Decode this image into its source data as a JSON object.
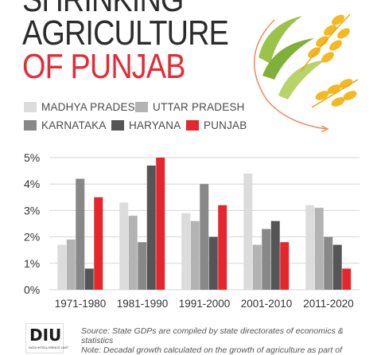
{
  "title": {
    "line1": "SHRINKING",
    "line2": "AGRICULTURE",
    "line3": "OF PUNJAB"
  },
  "legend": [
    {
      "name": "MADHYA PRADESH",
      "color": "#dcdcdc"
    },
    {
      "name": "UTTAR PRADESH",
      "color": "#b3b3b3"
    },
    {
      "name": "KARNATAKA",
      "color": "#888888"
    },
    {
      "name": "HARYANA",
      "color": "#555555"
    },
    {
      "name": "PUNJAB",
      "color": "#e5262d"
    }
  ],
  "chart_data": {
    "type": "bar",
    "categories": [
      "1971-1980",
      "1981-1990",
      "1991-2000",
      "2001-2010",
      "2011-2020"
    ],
    "series": [
      {
        "name": "MADHYA PRADESH",
        "color": "#dcdcdc",
        "values": [
          1.7,
          3.3,
          2.9,
          4.4,
          3.2
        ]
      },
      {
        "name": "UTTAR PRADESH",
        "color": "#b3b3b3",
        "values": [
          1.9,
          2.8,
          2.6,
          1.7,
          3.1
        ]
      },
      {
        "name": "KARNATAKA",
        "color": "#888888",
        "values": [
          4.2,
          1.8,
          4.0,
          2.3,
          2.0
        ]
      },
      {
        "name": "HARYANA",
        "color": "#555555",
        "values": [
          0.8,
          4.7,
          2.0,
          2.6,
          1.7
        ]
      },
      {
        "name": "PUNJAB",
        "color": "#e5262d",
        "values": [
          3.5,
          5.0,
          3.2,
          1.8,
          0.8
        ]
      }
    ],
    "yticks": [
      "0%",
      "1%",
      "2%",
      "3%",
      "4%",
      "5%"
    ],
    "ylim": [
      0,
      5
    ],
    "grid": true,
    "legend_position": "top"
  },
  "footer": {
    "logo": "DIU",
    "logo_sub": "DATA INTELLIGENCE UNIT",
    "source": "Source: State GDPs are compiled by state directorates of economics & statistics",
    "note": "Note: Decadal growth calculated on the growth of agriculture as part of"
  }
}
